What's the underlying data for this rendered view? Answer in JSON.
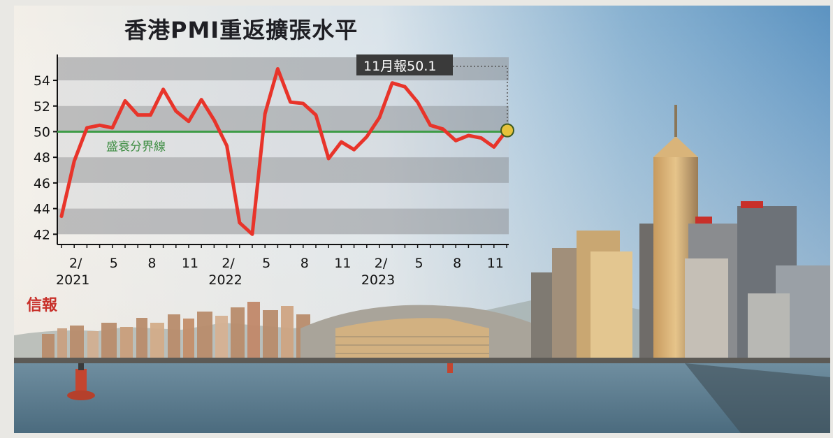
{
  "brand": "信報",
  "chart_data": {
    "type": "line",
    "title": "香港PMI重返擴張水平",
    "xlabel": "",
    "ylabel": "",
    "ylim": [
      42,
      55
    ],
    "yticks": [
      42,
      44,
      46,
      48,
      50,
      52,
      54
    ],
    "x_tick_labels": [
      {
        "index": 1,
        "month": "2/",
        "year": "2021"
      },
      {
        "index": 4,
        "month": "5",
        "year": ""
      },
      {
        "index": 7,
        "month": "8",
        "year": ""
      },
      {
        "index": 10,
        "month": "11",
        "year": ""
      },
      {
        "index": 13,
        "month": "2/",
        "year": "2022"
      },
      {
        "index": 16,
        "month": "5",
        "year": ""
      },
      {
        "index": 19,
        "month": "8",
        "year": ""
      },
      {
        "index": 22,
        "month": "11",
        "year": ""
      },
      {
        "index": 25,
        "month": "2/",
        "year": "2023"
      },
      {
        "index": 28,
        "month": "5",
        "year": ""
      },
      {
        "index": 31,
        "month": "8",
        "year": ""
      },
      {
        "index": 34,
        "month": "11",
        "year": ""
      }
    ],
    "series": [
      {
        "color": "#e8342a",
        "values": [
          43.4,
          47.7,
          50.3,
          50.5,
          50.3,
          52.4,
          51.3,
          51.3,
          53.3,
          51.6,
          50.8,
          52.5,
          50.9,
          48.9,
          42.9,
          42.0,
          51.4,
          54.9,
          52.3,
          52.2,
          51.3,
          47.9,
          49.2,
          48.6,
          49.6,
          51.1,
          53.8,
          53.5,
          52.3,
          50.5,
          50.2,
          49.3,
          49.7,
          49.5,
          48.8,
          50.1
        ]
      }
    ],
    "reference_line": {
      "value": 50,
      "label": "盛衰分界線",
      "color": "#3e9c47"
    },
    "callout": {
      "text": "11月報50.1",
      "index": 35,
      "value": 50.1
    },
    "grid": "alternating horizontal bands"
  }
}
